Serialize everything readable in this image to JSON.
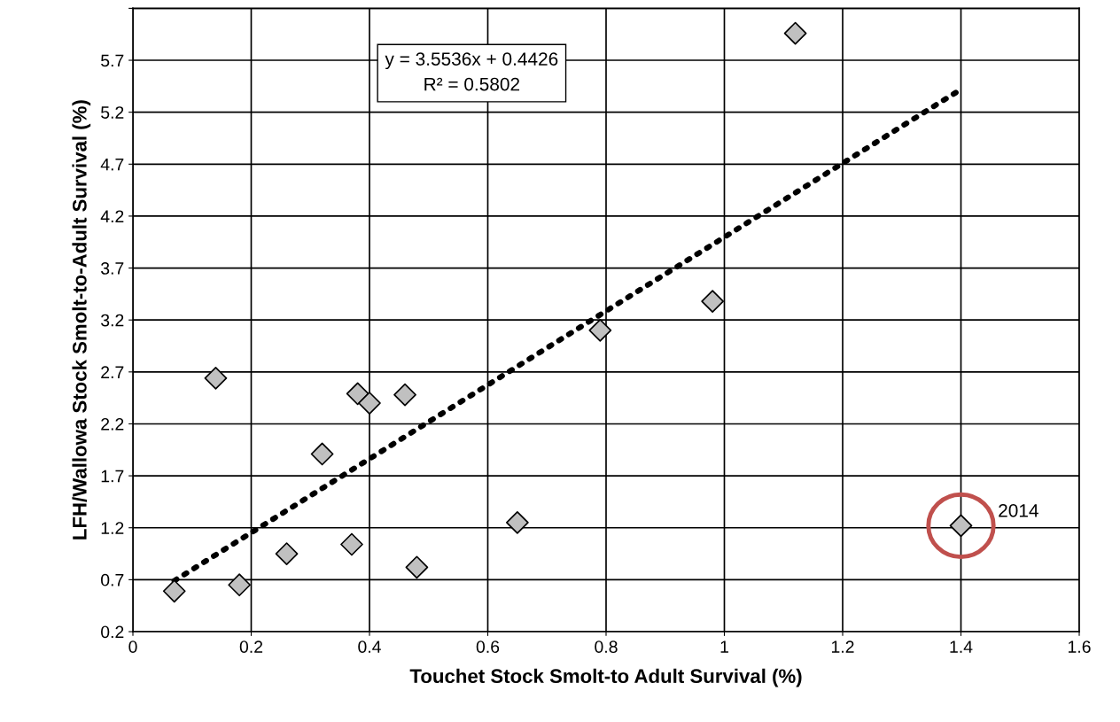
{
  "chart_data": {
    "type": "scatter",
    "xlabel": "Touchet Stock Smolt-to Adult Survival (%)",
    "ylabel": "LFH/Wallowa Stock Smolt-to-Adult Survival (%)",
    "series": [
      {
        "color": "#c0c0c0",
        "marker": "diamond",
        "x": [
          0.07,
          0.14,
          0.18,
          0.26,
          0.32,
          0.37,
          0.38,
          0.4,
          0.46,
          0.48,
          0.65,
          0.79,
          0.98,
          1.12,
          1.4
        ],
        "values": [
          0.59,
          2.64,
          0.65,
          0.95,
          1.91,
          1.04,
          2.49,
          2.4,
          2.48,
          0.82,
          1.25,
          3.1,
          3.38,
          5.96,
          1.22
        ]
      },
      {
        "type": "line",
        "color": "#000000",
        "line_style": "dotted",
        "marker": "none",
        "x": [
          0.07,
          1.4
        ],
        "values": [
          0.69,
          5.42
        ]
      }
    ],
    "annotations": [
      {
        "text": "y = 3.5536x + 0.4426\nR² = 0.5802"
      },
      {
        "text": "2014",
        "x": 1.4,
        "y": 1.22
      }
    ],
    "xlim": [
      0,
      1.6
    ],
    "xticks": [
      0,
      0.2,
      0.4,
      0.6,
      0.8,
      1,
      1.2,
      1.4,
      1.6
    ],
    "ylim": [
      0.2,
      6.2
    ],
    "yticks": [
      0.2,
      0.7,
      1.2,
      1.7,
      2.2,
      2.7,
      3.2,
      3.7,
      4.2,
      4.7,
      5.2,
      5.7,
      {
        "value": 6.2,
        "label": null
      }
    ],
    "grid": true
  }
}
